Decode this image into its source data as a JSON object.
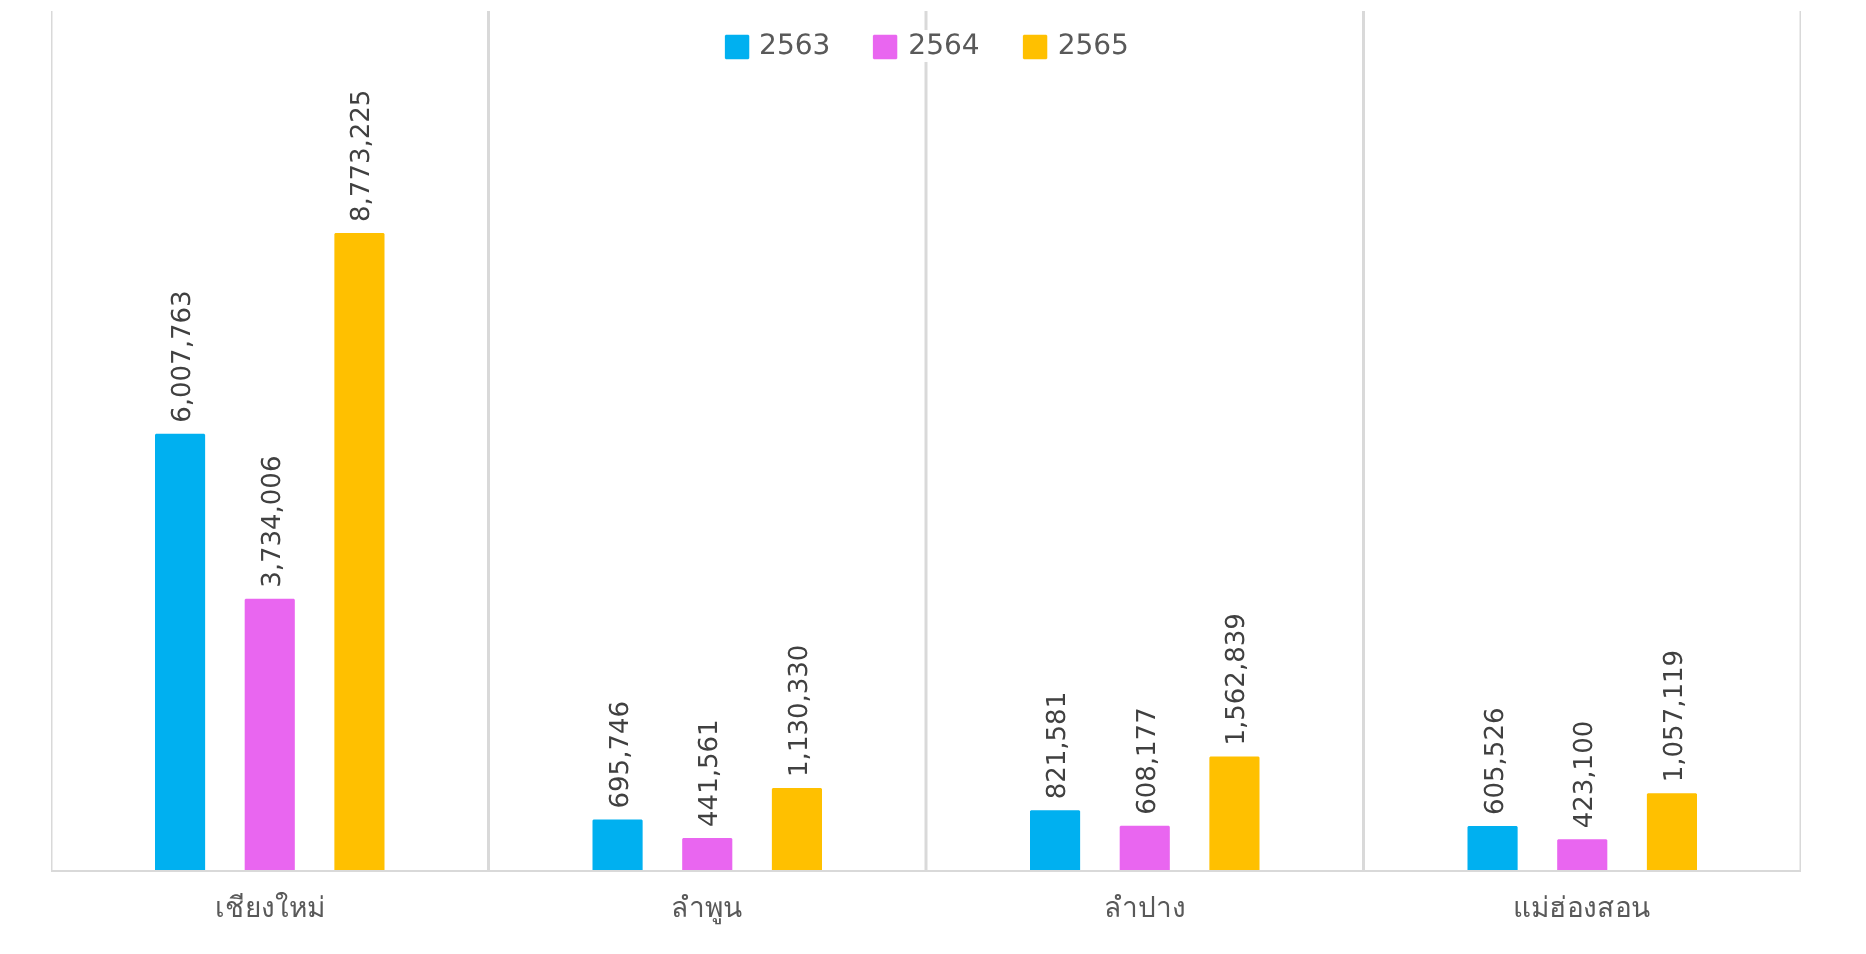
{
  "chart_data": {
    "type": "bar",
    "categories": [
      "เชียงใหม่",
      "ลำพูน",
      "ลำปาง",
      "แม่ฮ่องสอน"
    ],
    "series": [
      {
        "name": "2563",
        "color": "#00b0f0",
        "values": [
          6007763,
          695746,
          821581,
          605526
        ],
        "value_labels": [
          "6,007,763",
          "695,746",
          "821,581",
          "605,526"
        ]
      },
      {
        "name": "2564",
        "color": "#e966f0",
        "values": [
          3734006,
          441561,
          608177,
          423100
        ],
        "value_labels": [
          "3,734,006",
          "441,561",
          "608,177",
          "423,100"
        ]
      },
      {
        "name": "2565",
        "color": "#ffc000",
        "values": [
          8773225,
          1130330,
          1562839,
          1057119
        ],
        "value_labels": [
          "8,773,225",
          "1,130,330",
          "1,562,839",
          "1,057,119"
        ]
      }
    ],
    "legend": "top"
  }
}
